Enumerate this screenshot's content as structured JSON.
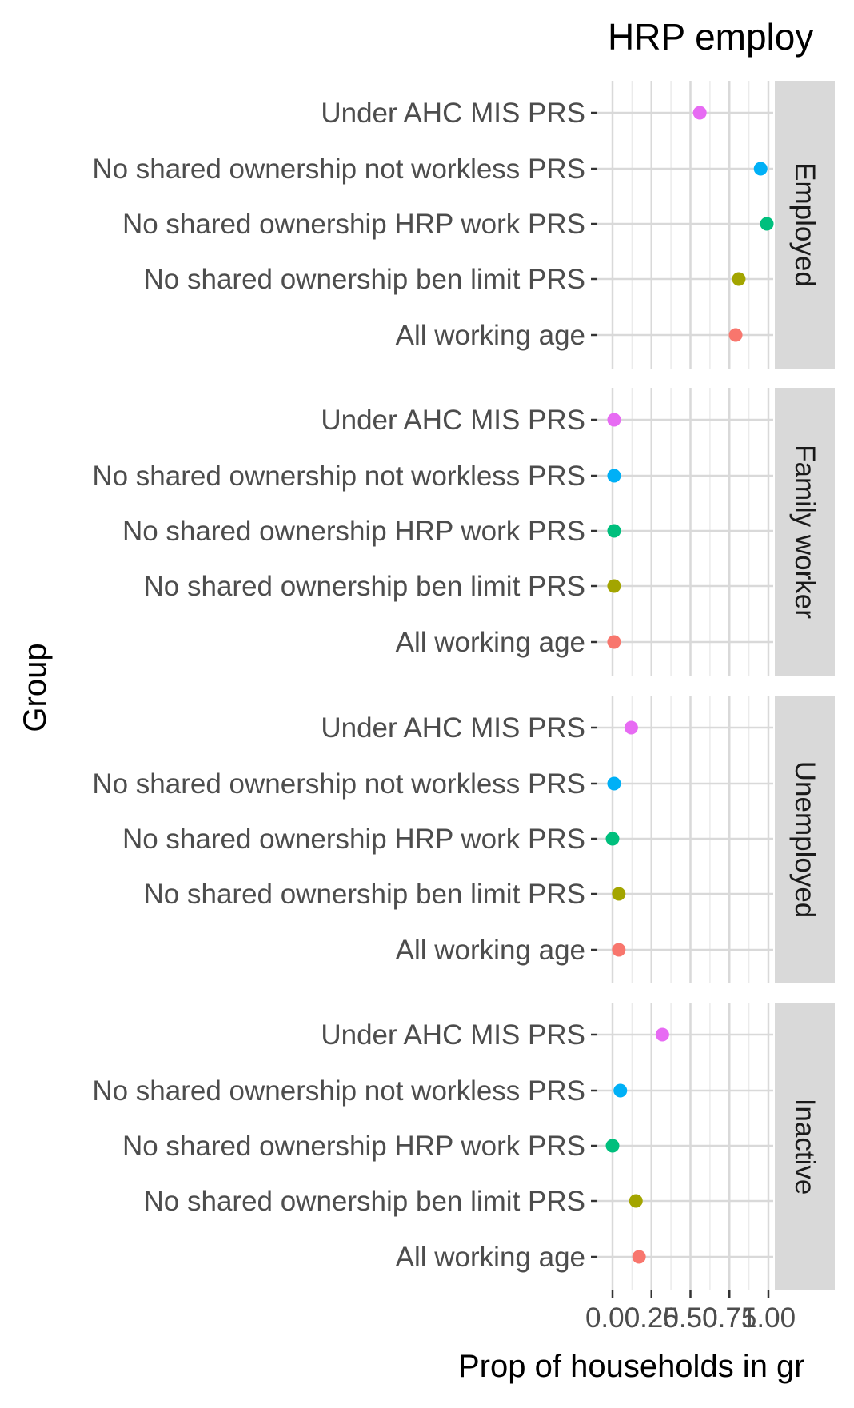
{
  "chart_data": {
    "type": "scatter",
    "title": "HRP employ",
    "xlabel": "Prop of households in gr",
    "ylabel": "Group",
    "xlim": [
      0,
      1
    ],
    "x_ticks": [
      "0.00",
      "0.25",
      "0.50",
      "0.75",
      "1.00"
    ],
    "grid": true,
    "legend": "none",
    "categories": [
      "Under AHC MIS PRS",
      "No shared ownership not workless PRS",
      "No shared ownership HRP work PRS",
      "No shared ownership ben limit PRS",
      "All working age"
    ],
    "category_colors": [
      "#E76BF3",
      "#00B0F6",
      "#00BF7D",
      "#A3A500",
      "#F8766D"
    ],
    "panels": [
      {
        "name": "Employed",
        "values": [
          0.56,
          0.95,
          0.99,
          0.81,
          0.79
        ]
      },
      {
        "name": "Family worker",
        "values": [
          0.01,
          0.01,
          0.01,
          0.01,
          0.01
        ]
      },
      {
        "name": "Unemployed",
        "values": [
          0.12,
          0.01,
          0.0,
          0.04,
          0.04
        ]
      },
      {
        "name": "Inactive",
        "values": [
          0.32,
          0.05,
          0.0,
          0.15,
          0.17
        ]
      }
    ]
  }
}
